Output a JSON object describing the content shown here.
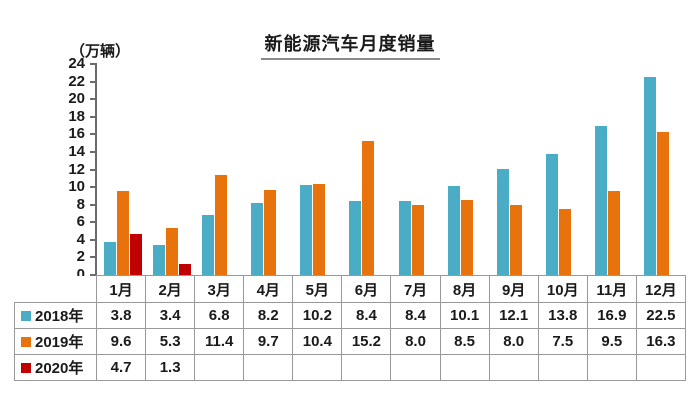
{
  "title": "新能源汽车月度销量",
  "unit_label": "（万辆）",
  "chart_data": {
    "type": "bar",
    "title": "新能源汽车月度销量",
    "ylabel": "（万辆）",
    "categories": [
      "1月",
      "2月",
      "3月",
      "4月",
      "5月",
      "6月",
      "7月",
      "8月",
      "9月",
      "10月",
      "11月",
      "12月"
    ],
    "series": [
      {
        "name": "2018年",
        "color": "#4BACC6",
        "values": [
          3.8,
          3.4,
          6.8,
          8.2,
          10.2,
          8.4,
          8.4,
          10.1,
          12.1,
          13.8,
          16.9,
          22.5
        ]
      },
      {
        "name": "2019年",
        "color": "#E8720C",
        "values": [
          9.6,
          5.3,
          11.4,
          9.7,
          10.4,
          15.2,
          8.0,
          8.5,
          8.0,
          7.5,
          9.5,
          16.3
        ]
      },
      {
        "name": "2020年",
        "color": "#C00000",
        "values": [
          4.7,
          1.3,
          null,
          null,
          null,
          null,
          null,
          null,
          null,
          null,
          null,
          null
        ]
      }
    ],
    "ylim": [
      0,
      24
    ],
    "ytick_step": 2,
    "grid": false,
    "legend_position": "table-left"
  }
}
